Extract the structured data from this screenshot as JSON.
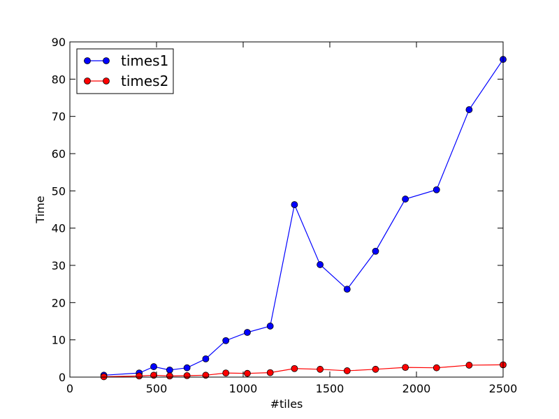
{
  "chart_data": {
    "type": "line",
    "title": "",
    "xlabel": "#tiles",
    "ylabel": "Time",
    "xlim": [
      0,
      2500
    ],
    "ylim": [
      0,
      90
    ],
    "xticks": [
      0,
      500,
      1000,
      1500,
      2000,
      2500
    ],
    "yticks": [
      0,
      10,
      20,
      30,
      40,
      50,
      60,
      70,
      80,
      90
    ],
    "legend_position": "top-left",
    "grid": false,
    "x": [
      196,
      400,
      484,
      576,
      676,
      784,
      900,
      1024,
      1156,
      1296,
      1444,
      1600,
      1764,
      1936,
      2116,
      2304,
      2500
    ],
    "series": [
      {
        "name": "times1",
        "color": "#0000ff",
        "values": [
          0.5,
          1.1,
          2.8,
          1.9,
          2.5,
          4.9,
          9.8,
          12.0,
          13.7,
          46.3,
          30.2,
          23.6,
          33.8,
          47.8,
          50.3,
          71.8,
          85.3
        ]
      },
      {
        "name": "times2",
        "color": "#ff0000",
        "values": [
          0.1,
          0.3,
          0.5,
          0.3,
          0.4,
          0.5,
          1.1,
          1.0,
          1.2,
          2.3,
          2.1,
          1.7,
          2.1,
          2.6,
          2.5,
          3.2,
          3.3
        ]
      }
    ]
  }
}
